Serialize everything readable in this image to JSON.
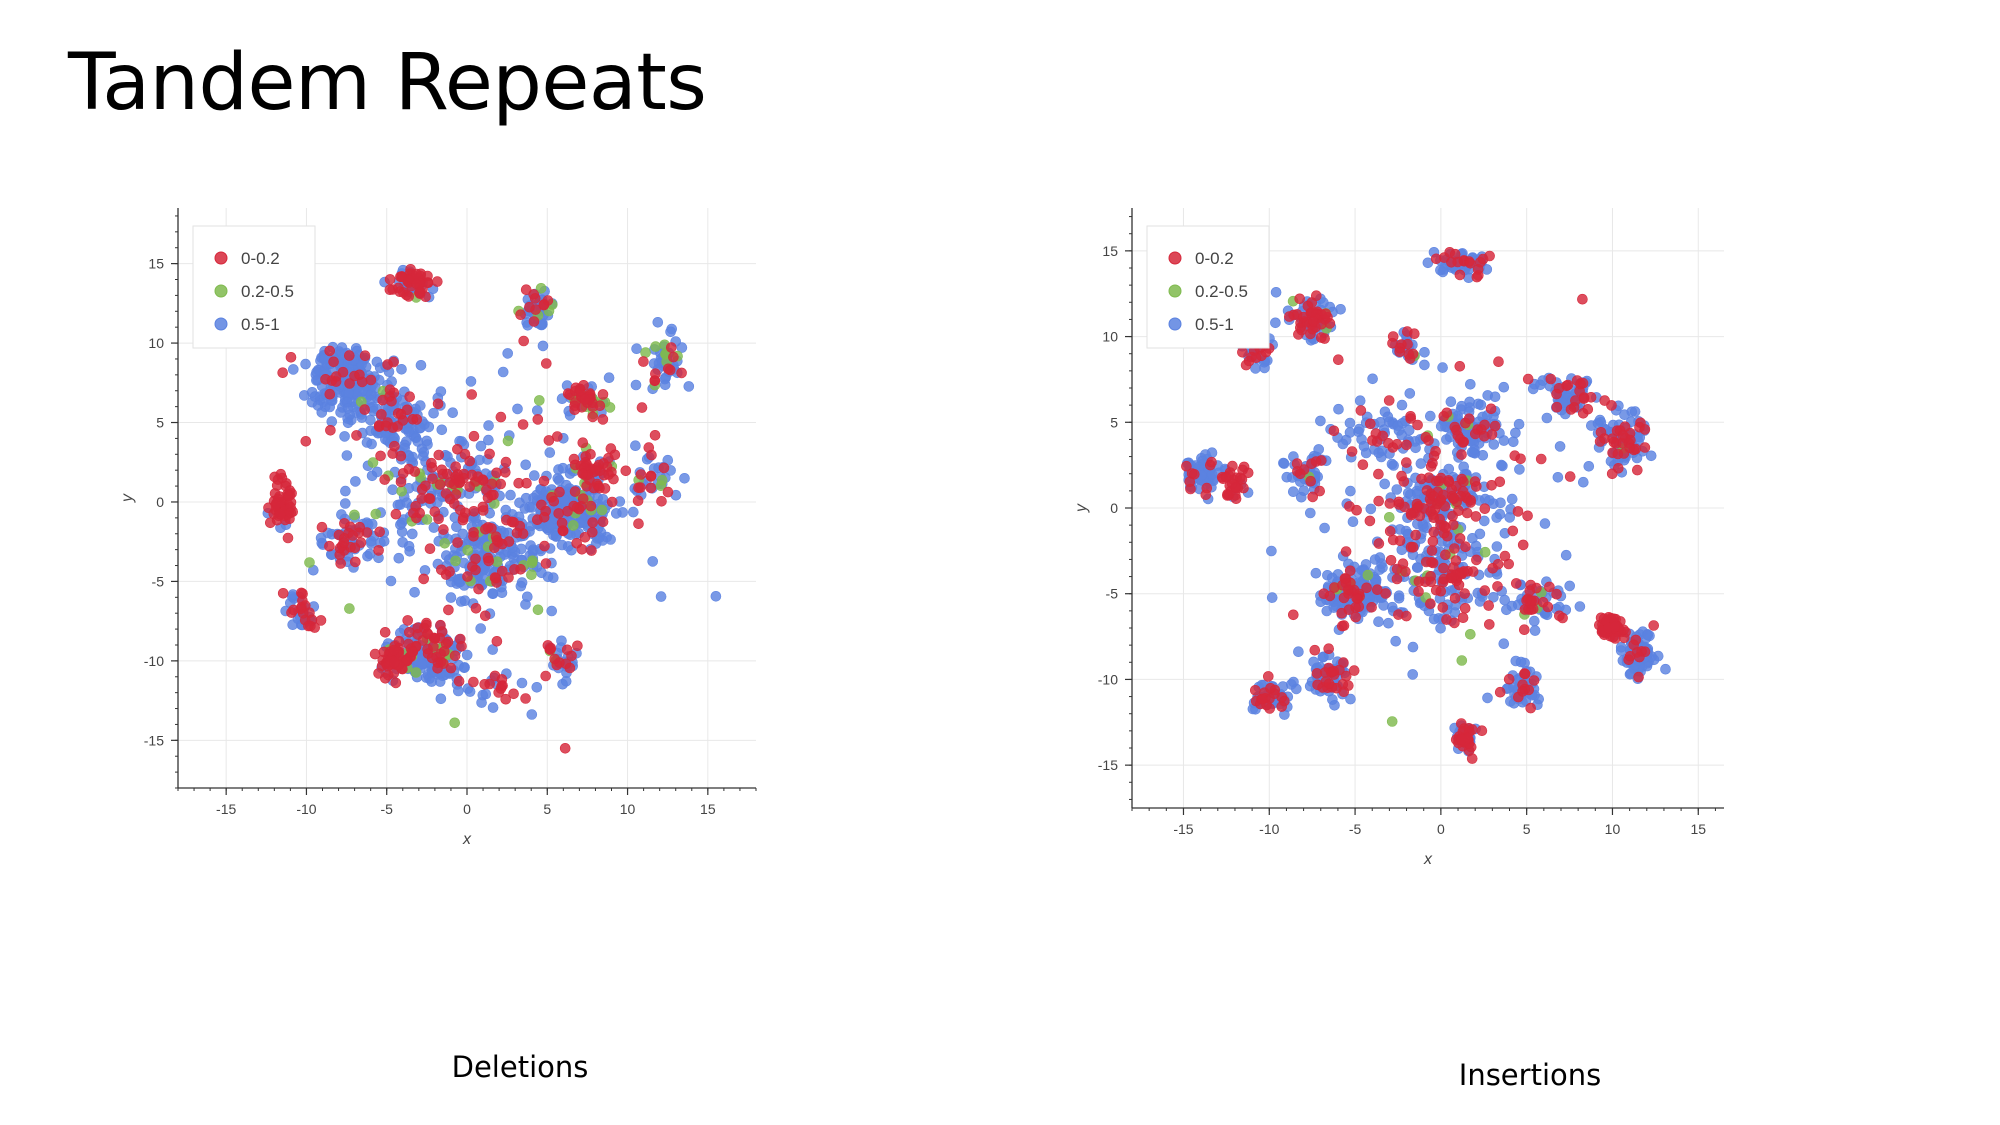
{
  "slide": {
    "title": "Tandem Repeats"
  },
  "chart_data": [
    {
      "type": "scatter",
      "caption": "Deletions",
      "xlabel": "x",
      "ylabel": "y",
      "xlim": [
        -18,
        18
      ],
      "ylim": [
        -18,
        18.5
      ],
      "xticks": [
        -15,
        -10,
        -5,
        0,
        5,
        10,
        15
      ],
      "yticks": [
        -15,
        -10,
        -5,
        0,
        5,
        10,
        15
      ],
      "grid": true,
      "legend_position": "top-left",
      "series": [
        {
          "name": "0-0.2",
          "color": "#d6273a"
        },
        {
          "name": "0.2-0.5",
          "color": "#7fba4e"
        },
        {
          "name": "0.5-1",
          "color": "#5b82e0"
        }
      ],
      "clusters": [
        {
          "center": [
            -7.5,
            7.5
          ],
          "spread": [
            2.2,
            2.0
          ],
          "count": 220,
          "mix": [
            0.08,
            0.02,
            0.9
          ]
        },
        {
          "center": [
            -4.5,
            5.0
          ],
          "spread": [
            1.8,
            2.2
          ],
          "count": 110,
          "mix": [
            0.15,
            0.03,
            0.82
          ]
        },
        {
          "center": [
            -3.5,
            13.8
          ],
          "spread": [
            1.2,
            0.8
          ],
          "count": 70,
          "mix": [
            0.55,
            0.05,
            0.4
          ]
        },
        {
          "center": [
            4.3,
            12.2
          ],
          "spread": [
            1.2,
            1.3
          ],
          "count": 45,
          "mix": [
            0.2,
            0.1,
            0.7
          ]
        },
        {
          "center": [
            12.2,
            9.0
          ],
          "spread": [
            1.0,
            1.5
          ],
          "count": 50,
          "mix": [
            0.15,
            0.15,
            0.7
          ]
        },
        {
          "center": [
            7.5,
            6.5
          ],
          "spread": [
            1.3,
            1.0
          ],
          "count": 55,
          "mix": [
            0.45,
            0.2,
            0.35
          ]
        },
        {
          "center": [
            6.5,
            -0.5
          ],
          "spread": [
            2.4,
            1.8
          ],
          "count": 230,
          "mix": [
            0.12,
            0.03,
            0.85
          ]
        },
        {
          "center": [
            8.0,
            2.0
          ],
          "spread": [
            1.2,
            1.2
          ],
          "count": 50,
          "mix": [
            0.7,
            0.05,
            0.25
          ]
        },
        {
          "center": [
            -11.5,
            0.0
          ],
          "spread": [
            0.8,
            1.5
          ],
          "count": 55,
          "mix": [
            0.9,
            0.05,
            0.05
          ]
        },
        {
          "center": [
            -2.5,
            -9.5
          ],
          "spread": [
            2.0,
            1.6
          ],
          "count": 170,
          "mix": [
            0.25,
            0.05,
            0.7
          ]
        },
        {
          "center": [
            -4.5,
            -10.0
          ],
          "spread": [
            1.0,
            1.0
          ],
          "count": 50,
          "mix": [
            0.75,
            0.1,
            0.15
          ]
        },
        {
          "center": [
            1.5,
            -3.5
          ],
          "spread": [
            3.0,
            2.5
          ],
          "count": 210,
          "mix": [
            0.15,
            0.04,
            0.81
          ]
        },
        {
          "center": [
            -1.0,
            1.0
          ],
          "spread": [
            3.5,
            2.0
          ],
          "count": 130,
          "mix": [
            0.4,
            0.06,
            0.54
          ]
        },
        {
          "center": [
            -7.5,
            -2.5
          ],
          "spread": [
            1.8,
            1.5
          ],
          "count": 60,
          "mix": [
            0.35,
            0.05,
            0.6
          ]
        },
        {
          "center": [
            -10.0,
            -7.0
          ],
          "spread": [
            1.0,
            1.3
          ],
          "count": 35,
          "mix": [
            0.3,
            0.05,
            0.65
          ]
        },
        {
          "center": [
            6.0,
            -10.0
          ],
          "spread": [
            1.0,
            1.2
          ],
          "count": 35,
          "mix": [
            0.2,
            0.05,
            0.75
          ]
        },
        {
          "center": [
            11.5,
            1.5
          ],
          "spread": [
            1.5,
            1.5
          ],
          "count": 35,
          "mix": [
            0.35,
            0.1,
            0.55
          ]
        },
        {
          "center": [
            2.0,
            -12.0
          ],
          "spread": [
            2.5,
            1.5
          ],
          "count": 30,
          "mix": [
            0.35,
            0.05,
            0.6
          ]
        },
        {
          "center": [
            0.0,
            0.0
          ],
          "spread": [
            9.0,
            8.0
          ],
          "count": 170,
          "mix": [
            0.4,
            0.08,
            0.52
          ]
        }
      ]
    },
    {
      "type": "scatter",
      "caption": "Insertions",
      "xlabel": "x",
      "ylabel": "y",
      "xlim": [
        -18,
        16.5
      ],
      "ylim": [
        -17.5,
        17.5
      ],
      "xticks": [
        -15,
        -10,
        -5,
        0,
        5,
        10,
        15
      ],
      "yticks": [
        -15,
        -10,
        -5,
        0,
        5,
        10,
        15
      ],
      "grid": true,
      "legend_position": "top-left",
      "series": [
        {
          "name": "0-0.2",
          "color": "#d6273a"
        },
        {
          "name": "0.2-0.5",
          "color": "#7fba4e"
        },
        {
          "name": "0.5-1",
          "color": "#5b82e0"
        }
      ],
      "clusters": [
        {
          "center": [
            -14.0,
            2.0
          ],
          "spread": [
            0.9,
            1.0
          ],
          "count": 60,
          "mix": [
            0.1,
            0.0,
            0.9
          ]
        },
        {
          "center": [
            -12.0,
            1.5
          ],
          "spread": [
            0.6,
            1.2
          ],
          "count": 30,
          "mix": [
            0.85,
            0.0,
            0.15
          ]
        },
        {
          "center": [
            -7.5,
            11.0
          ],
          "spread": [
            1.3,
            1.2
          ],
          "count": 80,
          "mix": [
            0.45,
            0.03,
            0.52
          ]
        },
        {
          "center": [
            1.5,
            14.3
          ],
          "spread": [
            1.5,
            0.7
          ],
          "count": 60,
          "mix": [
            0.25,
            0.0,
            0.75
          ]
        },
        {
          "center": [
            -10.5,
            9.0
          ],
          "spread": [
            0.8,
            1.0
          ],
          "count": 30,
          "mix": [
            0.4,
            0.0,
            0.6
          ]
        },
        {
          "center": [
            -2.0,
            9.5
          ],
          "spread": [
            1.0,
            0.8
          ],
          "count": 30,
          "mix": [
            0.3,
            0.0,
            0.7
          ]
        },
        {
          "center": [
            1.5,
            4.5
          ],
          "spread": [
            2.0,
            1.5
          ],
          "count": 100,
          "mix": [
            0.2,
            0.02,
            0.78
          ]
        },
        {
          "center": [
            7.5,
            6.5
          ],
          "spread": [
            1.3,
            1.0
          ],
          "count": 70,
          "mix": [
            0.25,
            0.0,
            0.75
          ]
        },
        {
          "center": [
            10.5,
            4.0
          ],
          "spread": [
            1.3,
            1.8
          ],
          "count": 100,
          "mix": [
            0.3,
            0.02,
            0.68
          ]
        },
        {
          "center": [
            -5.0,
            -5.0
          ],
          "spread": [
            1.6,
            1.2
          ],
          "count": 180,
          "mix": [
            0.15,
            0.03,
            0.82
          ]
        },
        {
          "center": [
            -7.5,
            2.0
          ],
          "spread": [
            1.2,
            1.0
          ],
          "count": 50,
          "mix": [
            0.2,
            0.02,
            0.78
          ]
        },
        {
          "center": [
            0.0,
            0.5
          ],
          "spread": [
            3.0,
            2.0
          ],
          "count": 160,
          "mix": [
            0.35,
            0.03,
            0.62
          ]
        },
        {
          "center": [
            10.0,
            -7.0
          ],
          "spread": [
            0.6,
            0.6
          ],
          "count": 60,
          "mix": [
            0.9,
            0.03,
            0.07
          ]
        },
        {
          "center": [
            11.5,
            -8.5
          ],
          "spread": [
            0.8,
            1.2
          ],
          "count": 90,
          "mix": [
            0.1,
            0.0,
            0.9
          ]
        },
        {
          "center": [
            -10.0,
            -11.0
          ],
          "spread": [
            1.0,
            0.8
          ],
          "count": 70,
          "mix": [
            0.25,
            0.0,
            0.75
          ]
        },
        {
          "center": [
            -6.5,
            -10.0
          ],
          "spread": [
            1.3,
            1.2
          ],
          "count": 70,
          "mix": [
            0.3,
            0.0,
            0.7
          ]
        },
        {
          "center": [
            1.5,
            -13.5
          ],
          "spread": [
            0.6,
            0.8
          ],
          "count": 50,
          "mix": [
            0.55,
            0.0,
            0.45
          ]
        },
        {
          "center": [
            4.8,
            -10.5
          ],
          "spread": [
            0.9,
            1.0
          ],
          "count": 45,
          "mix": [
            0.35,
            0.0,
            0.65
          ]
        },
        {
          "center": [
            5.5,
            -5.5
          ],
          "spread": [
            1.5,
            1.0
          ],
          "count": 60,
          "mix": [
            0.25,
            0.03,
            0.72
          ]
        },
        {
          "center": [
            -3.0,
            4.5
          ],
          "spread": [
            2.5,
            1.5
          ],
          "count": 60,
          "mix": [
            0.3,
            0.02,
            0.68
          ]
        },
        {
          "center": [
            0.0,
            -4.0
          ],
          "spread": [
            4.0,
            3.0
          ],
          "count": 150,
          "mix": [
            0.35,
            0.04,
            0.61
          ]
        },
        {
          "center": [
            0.0,
            0.0
          ],
          "spread": [
            8.0,
            8.0
          ],
          "count": 140,
          "mix": [
            0.4,
            0.04,
            0.56
          ]
        }
      ]
    }
  ]
}
